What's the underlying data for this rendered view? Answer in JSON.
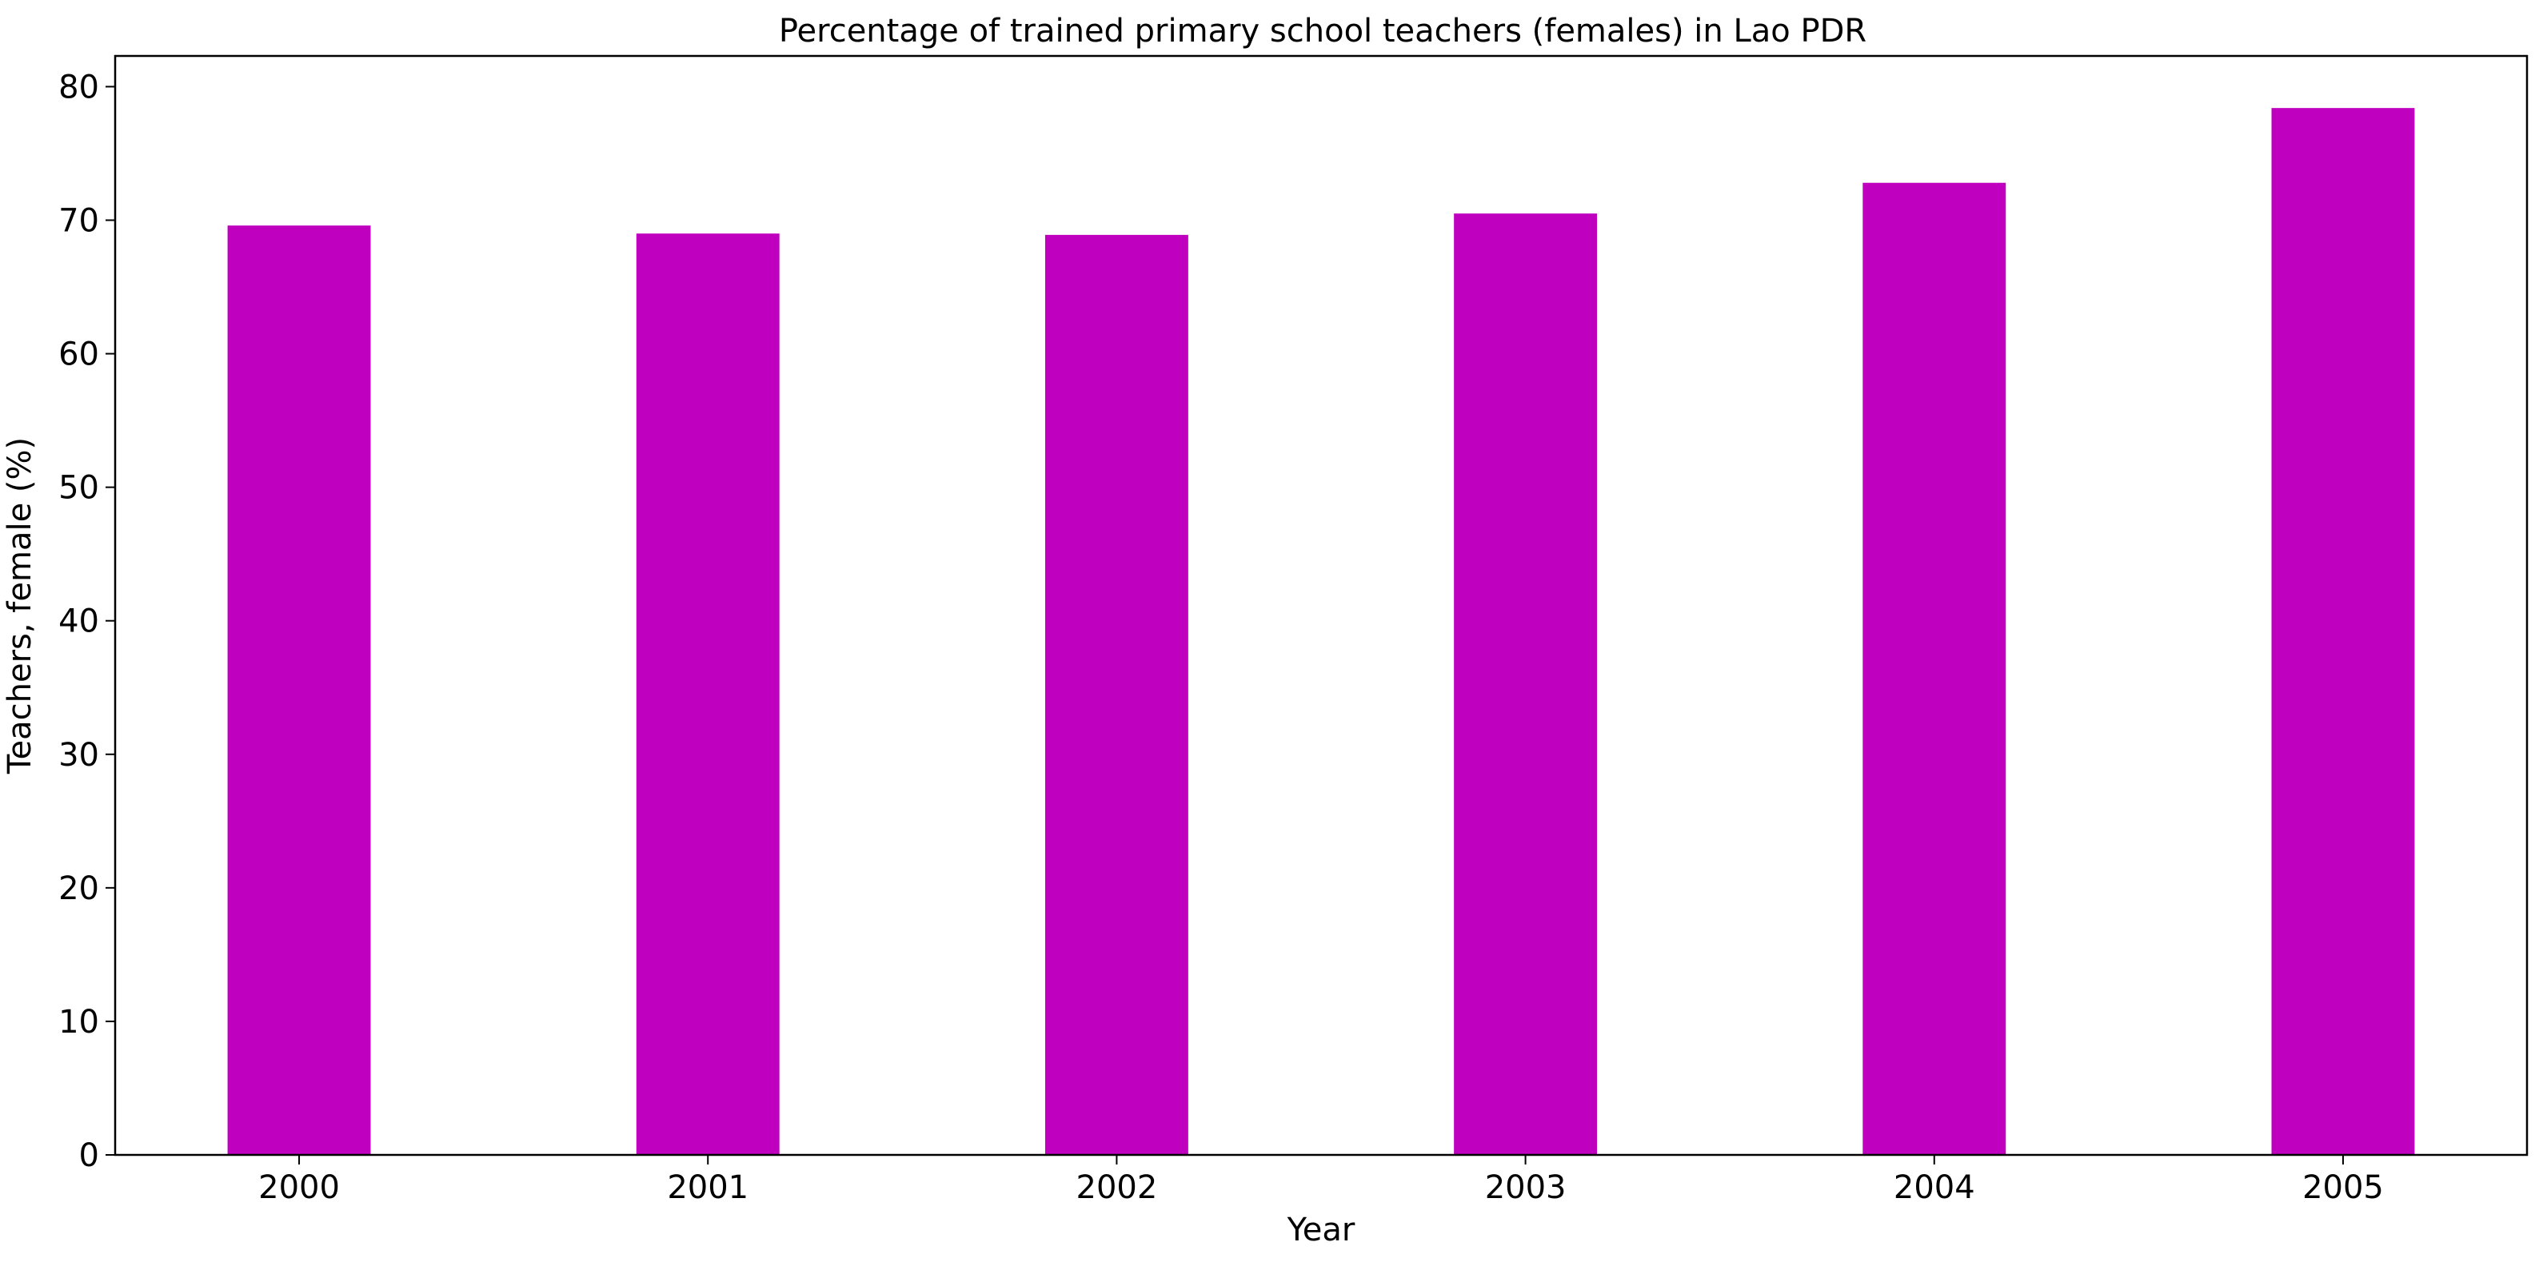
{
  "chart_data": {
    "type": "bar",
    "title": "Percentage of trained primary school teachers (females) in Lao PDR",
    "xlabel": "Year",
    "ylabel": "Teachers, female (%)",
    "categories": [
      "2000",
      "2001",
      "2002",
      "2003",
      "2004",
      "2005"
    ],
    "values": [
      69.6,
      69.0,
      68.9,
      70.5,
      72.8,
      78.4
    ],
    "ylim": [
      0,
      82.3
    ],
    "yticks": [
      0,
      10,
      20,
      30,
      40,
      50,
      60,
      70,
      80
    ],
    "bar_color": "#bf00bf",
    "grid": false,
    "legend": "none"
  }
}
